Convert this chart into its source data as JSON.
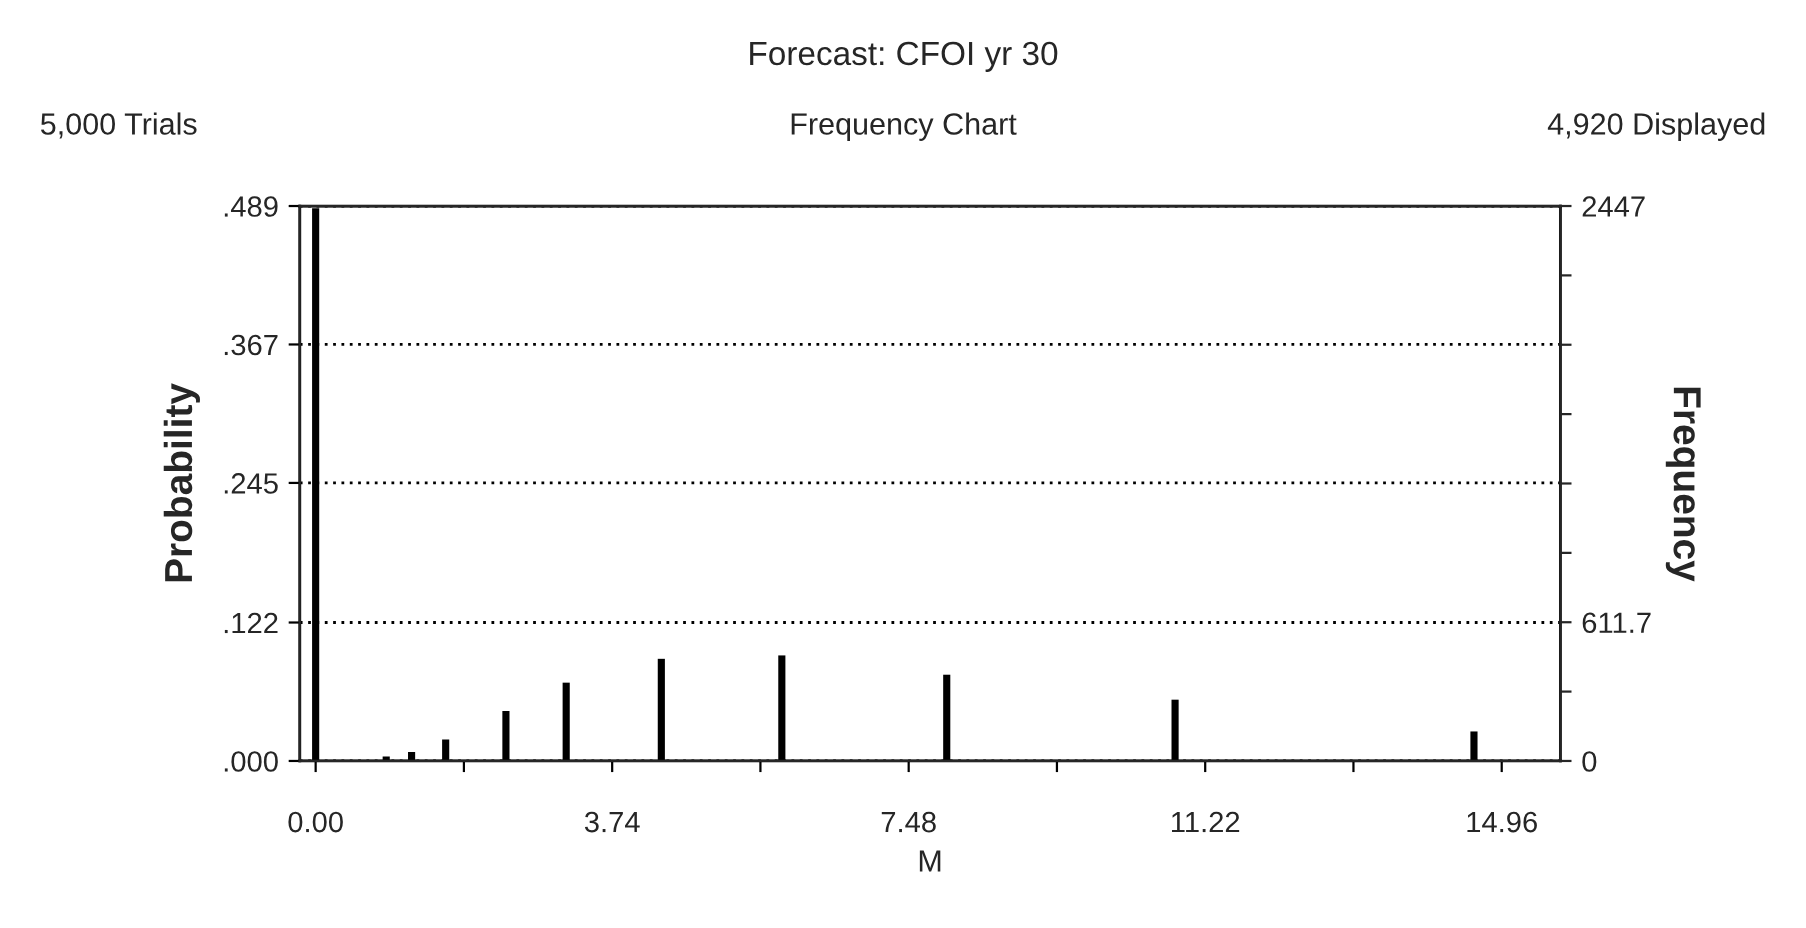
{
  "chart_data": {
    "type": "bar",
    "title": "Forecast: CFOI yr 30",
    "subtitle": "Frequency Chart",
    "annotations": [
      "5,000 Trials",
      "4,920 Displayed"
    ],
    "xlabel": "M",
    "ylabel": "Probability",
    "y2label": "Frequency",
    "x": [
      0.0,
      0.89,
      1.21,
      1.64,
      2.4,
      3.16,
      4.36,
      5.88,
      7.96,
      10.84,
      14.61
    ],
    "values": [
      0.487,
      0.004,
      0.008,
      0.019,
      0.044,
      0.069,
      0.09,
      0.093,
      0.076,
      0.054,
      0.026
    ],
    "color": "#000000",
    "xlim": [
      -0.2,
      15.7
    ],
    "xticks": [
      {
        "value": 0,
        "label": "0.00"
      },
      {
        "value": 1.87,
        "label": null
      },
      {
        "value": 3.74,
        "label": "3.74"
      },
      {
        "value": 5.61,
        "label": null
      },
      {
        "value": 7.48,
        "label": "7.48"
      },
      {
        "value": 9.35,
        "label": null
      },
      {
        "value": 11.22,
        "label": "11.22"
      },
      {
        "value": 13.09,
        "label": null
      },
      {
        "value": 14.96,
        "label": "14.96"
      }
    ],
    "ylim": [
      0,
      0.489
    ],
    "yticks": [
      {
        "value": 0,
        "label": ".000"
      },
      {
        "value": 0.122,
        "label": ".122"
      },
      {
        "value": 0.245,
        "label": ".245"
      },
      {
        "value": 0.367,
        "label": ".367"
      },
      {
        "value": 0.489,
        "label": ".489"
      }
    ],
    "y2lim": [
      0,
      2447
    ],
    "y2ticks": [
      0,
      {
        "value": 305.9,
        "label": null
      },
      611.7,
      {
        "value": 917.6,
        "label": null
      },
      {
        "value": 1223.5,
        "label": null
      },
      {
        "value": 1529.4,
        "label": null
      },
      {
        "value": 1835.3,
        "label": null
      },
      {
        "value": 2141.1,
        "label": null
      },
      2447
    ],
    "grid": "y"
  }
}
